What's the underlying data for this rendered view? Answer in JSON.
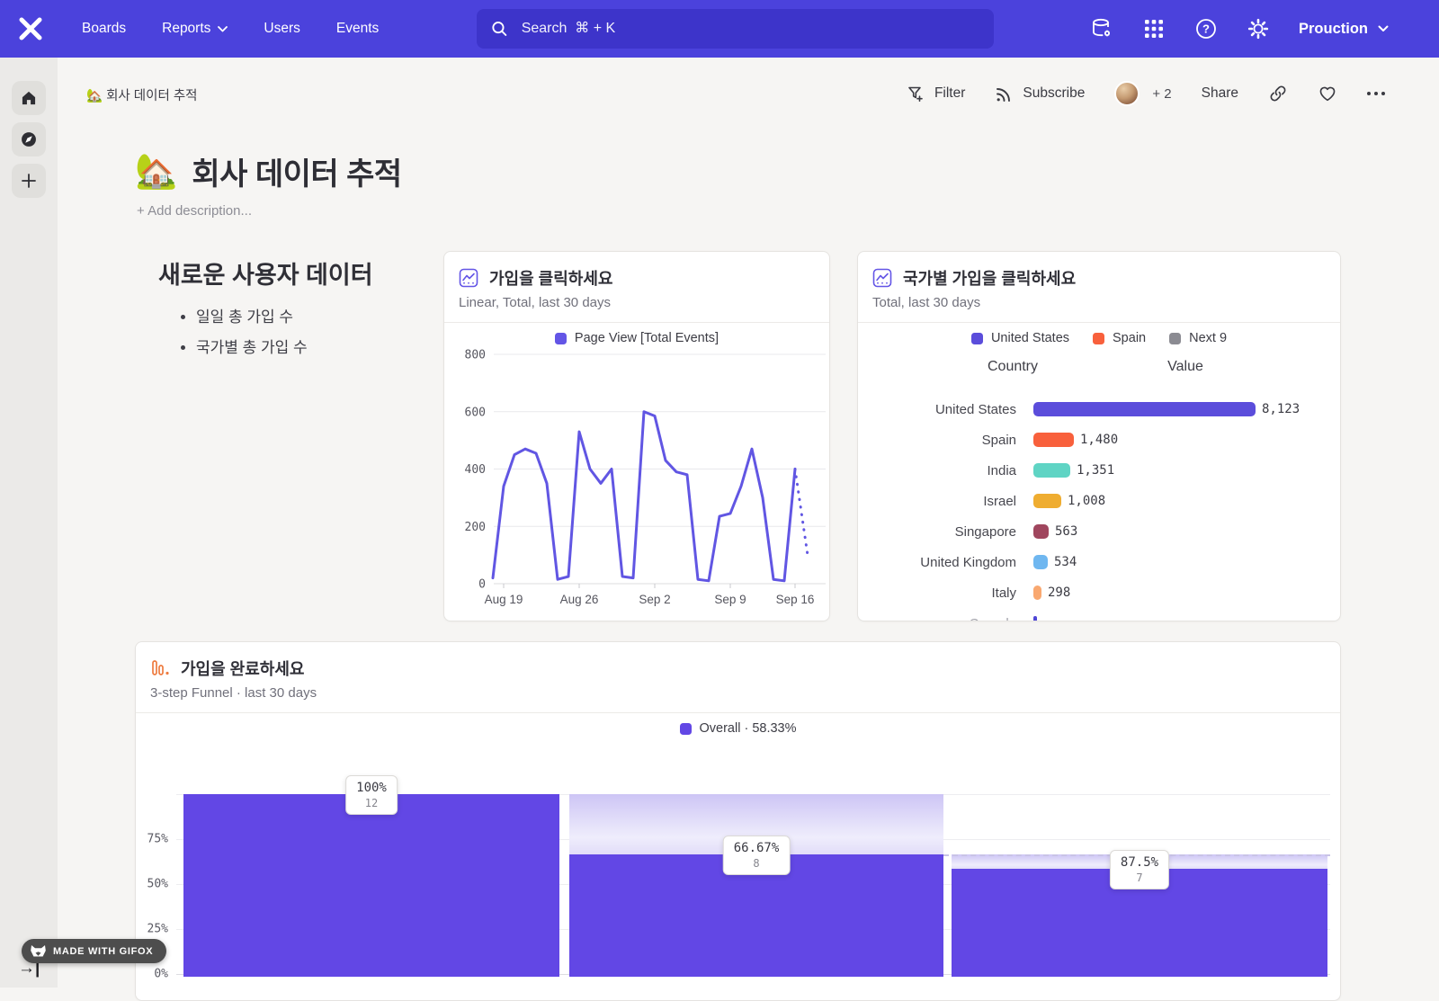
{
  "navbar": {
    "items": [
      {
        "label": "Boards",
        "has_caret": false
      },
      {
        "label": "Reports",
        "has_caret": true
      },
      {
        "label": "Users",
        "has_caret": false
      },
      {
        "label": "Events",
        "has_caret": false
      }
    ],
    "search_placeholder": "Search  ⌘ + K",
    "project": "Prouction",
    "bg_color": "#4b42dc",
    "search_bg_color": "#3d34ca"
  },
  "board_bar": {
    "breadcrumb": "🏡 회사 데이터 추적",
    "filter": "Filter",
    "subscribe": "Subscribe",
    "collaborators_extra": "+ 2",
    "share": "Share"
  },
  "page": {
    "emoji": "🏡",
    "title": "회사 데이터 추적",
    "add_description": "+ Add description..."
  },
  "text_card": {
    "heading": "새로운 사용자 데이터",
    "bullets": [
      "일일 총 가입 수",
      "국가별 총 가입 수"
    ]
  },
  "line_card": {
    "title": "가입을 클릭하세요",
    "subtitle": "Linear, Total, last 30 days",
    "legend": "Page View [Total Events]",
    "accent": "#6156e3"
  },
  "bar_card": {
    "title": "국가별 가입을 클릭하세요",
    "subtitle": "Total, last 30 days",
    "legend": [
      {
        "label": "United States",
        "color": "#5b4ddb"
      },
      {
        "label": "Spain",
        "color": "#f8603c"
      },
      {
        "label": "Next 9",
        "color": "#8b8b92"
      }
    ],
    "col_country": "Country",
    "col_value": "Value"
  },
  "funnel_card": {
    "title": "가입을 완료하세요",
    "subtitle": "3-step Funnel · last 30 days",
    "legend": "Overall · 58.33%",
    "accent": "#6247e5"
  },
  "made_with": "MADE WITH GIFOX",
  "chart_data": [
    {
      "type": "line",
      "title": "가입을 클릭하세요",
      "series": [
        {
          "name": "Page View [Total Events]",
          "values": [
            20,
            340,
            450,
            470,
            455,
            350,
            15,
            25,
            530,
            400,
            350,
            400,
            25,
            20,
            600,
            585,
            430,
            390,
            380,
            15,
            10,
            235,
            245,
            340,
            470,
            300,
            15,
            10,
            400
          ]
        }
      ],
      "incomplete_tail_value": 100,
      "x_tick_labels": [
        "Aug 19",
        "Aug 26",
        "Sep 2",
        "Sep 9",
        "Sep 16"
      ],
      "x_tick_indices": [
        1,
        8,
        15,
        22,
        28
      ],
      "y_ticks": [
        0,
        200,
        400,
        600,
        800
      ],
      "ylim": [
        0,
        800
      ],
      "line_color": "#6156e3",
      "grid": true,
      "legend_position": "top"
    },
    {
      "type": "bar",
      "title": "국가별 가입을 클릭하세요",
      "orientation": "horizontal",
      "categories": [
        "United States",
        "Spain",
        "India",
        "Israel",
        "Singapore",
        "United Kingdom",
        "Italy",
        "Canada"
      ],
      "values": [
        8123,
        1480,
        1351,
        1008,
        563,
        534,
        298,
        null
      ],
      "display_values": [
        "8,123",
        "1,480",
        "1,351",
        "1,008",
        "563",
        "534",
        "298",
        ""
      ],
      "colors": [
        "#5b4ddb",
        "#f8603c",
        "#5fd4c4",
        "#efad31",
        "#a0465e",
        "#6fb7f0",
        "#f9a870",
        "#4f46d6"
      ],
      "xmax": 8123
    },
    {
      "type": "bar",
      "subtype": "funnel",
      "title": "가입을 완료하세요",
      "overall_conversion": "58.33%",
      "steps": [
        {
          "step_conversion": "100%",
          "count": "12",
          "overall_pct": 100,
          "prev_overall_pct": 100
        },
        {
          "step_conversion": "66.67%",
          "count": "8",
          "overall_pct": 66.67,
          "prev_overall_pct": 100
        },
        {
          "step_conversion": "87.5%",
          "count": "7",
          "overall_pct": 58.33,
          "prev_overall_pct": 66.67
        }
      ],
      "y_tick_labels": [
        "0%",
        "25%",
        "50%",
        "75%"
      ],
      "y_tick_pcts": [
        0,
        25,
        50,
        75
      ],
      "ylim": [
        0,
        100
      ],
      "bar_color": "#6247e5"
    }
  ]
}
